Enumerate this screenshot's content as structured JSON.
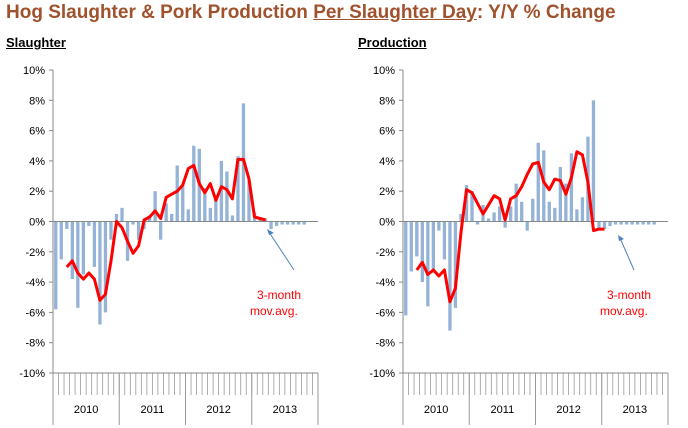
{
  "title": {
    "part1": "Hog Slaughter & Pork Production ",
    "part2": "Per Slaughter Day",
    "part3": ": Y/Y % Change"
  },
  "colors": {
    "title": "#a0522d",
    "bars": "#95b3d7",
    "line": "#ff0000",
    "arrow": "#4f81bd"
  },
  "chart_data": [
    {
      "type": "bar",
      "title": "Slaughter",
      "ylim": [
        -10,
        10
      ],
      "yticks": [
        "10%",
        "8%",
        "6%",
        "4%",
        "2%",
        "0%",
        "-2%",
        "-4%",
        "-6%",
        "-8%",
        "-10%"
      ],
      "year_labels": [
        "2010",
        "2011",
        "2012",
        "2013"
      ],
      "annotation": [
        "3-month",
        "mov.avg."
      ],
      "series": [
        {
          "type": "bar",
          "values": [
            -5.8,
            -2.5,
            -0.5,
            -3.8,
            -5.7,
            -3.5,
            -0.3,
            -3.0,
            -6.8,
            -6.0,
            -1.2,
            0.5,
            0.9,
            -2.6,
            -0.2,
            -1.2,
            -0.5,
            0.4,
            2.0,
            -1.2,
            1.2,
            0.5,
            3.7,
            2.4,
            0.8,
            5.0,
            4.8,
            2.2,
            0.9,
            1.5,
            4.0,
            3.3,
            0.4,
            4.3,
            7.8,
            2.7,
            0.6,
            0.3,
            0.2,
            -0.5,
            -0.3,
            -0.2,
            -0.2,
            -0.2,
            -0.2,
            -0.2
          ]
        },
        {
          "type": "line",
          "start_index": 2,
          "values": [
            -3.0,
            -2.6,
            -3.4,
            -3.8,
            -3.4,
            -3.8,
            -5.2,
            -4.8,
            -2.6,
            0.0,
            -0.4,
            -1.3,
            -2.1,
            -1.6,
            0.1,
            0.3,
            0.7,
            0.2,
            1.6,
            1.8,
            2.0,
            2.4,
            3.5,
            3.7,
            2.5,
            1.9,
            2.5,
            1.4,
            2.3,
            2.1,
            1.5,
            4.1,
            4.1,
            2.8,
            0.3,
            0.2,
            0.1
          ]
        }
      ]
    },
    {
      "type": "bar",
      "title": "Production",
      "ylim": [
        -10,
        10
      ],
      "yticks": [
        "10%",
        "8%",
        "6%",
        "4%",
        "2%",
        "0%",
        "-2%",
        "-4%",
        "-6%",
        "-8%",
        "-10%"
      ],
      "year_labels": [
        "2010",
        "2011",
        "2012",
        "2013"
      ],
      "annotation": [
        "3-month",
        "mov.avg."
      ],
      "series": [
        {
          "type": "bar",
          "values": [
            -6.2,
            -3.3,
            -2.3,
            -4.0,
            -5.6,
            -3.2,
            -0.6,
            -2.5,
            -7.2,
            -5.7,
            0.5,
            2.4,
            2.0,
            -0.2,
            1.1,
            0.2,
            0.6,
            1.0,
            -0.4,
            1.0,
            2.5,
            1.3,
            -0.6,
            1.5,
            5.2,
            4.7,
            1.3,
            0.9,
            3.6,
            2.5,
            4.5,
            0.8,
            1.6,
            5.6,
            8.0,
            -0.6,
            -0.5,
            -0.3,
            -0.2,
            -0.2,
            -0.2,
            -0.2,
            -0.2,
            -0.2,
            -0.2,
            -0.2
          ]
        },
        {
          "type": "line",
          "start_index": 2,
          "values": [
            -3.2,
            -2.7,
            -3.5,
            -3.2,
            -3.6,
            -3.2,
            -5.3,
            -4.4,
            -0.7,
            2.1,
            1.9,
            1.2,
            0.5,
            1.1,
            1.7,
            1.5,
            0.1,
            1.5,
            1.7,
            2.3,
            3.1,
            3.8,
            3.9,
            2.6,
            2.1,
            2.8,
            2.7,
            1.8,
            2.9,
            4.6,
            4.4,
            2.6,
            -0.6,
            -0.5,
            -0.5
          ]
        }
      ]
    }
  ]
}
